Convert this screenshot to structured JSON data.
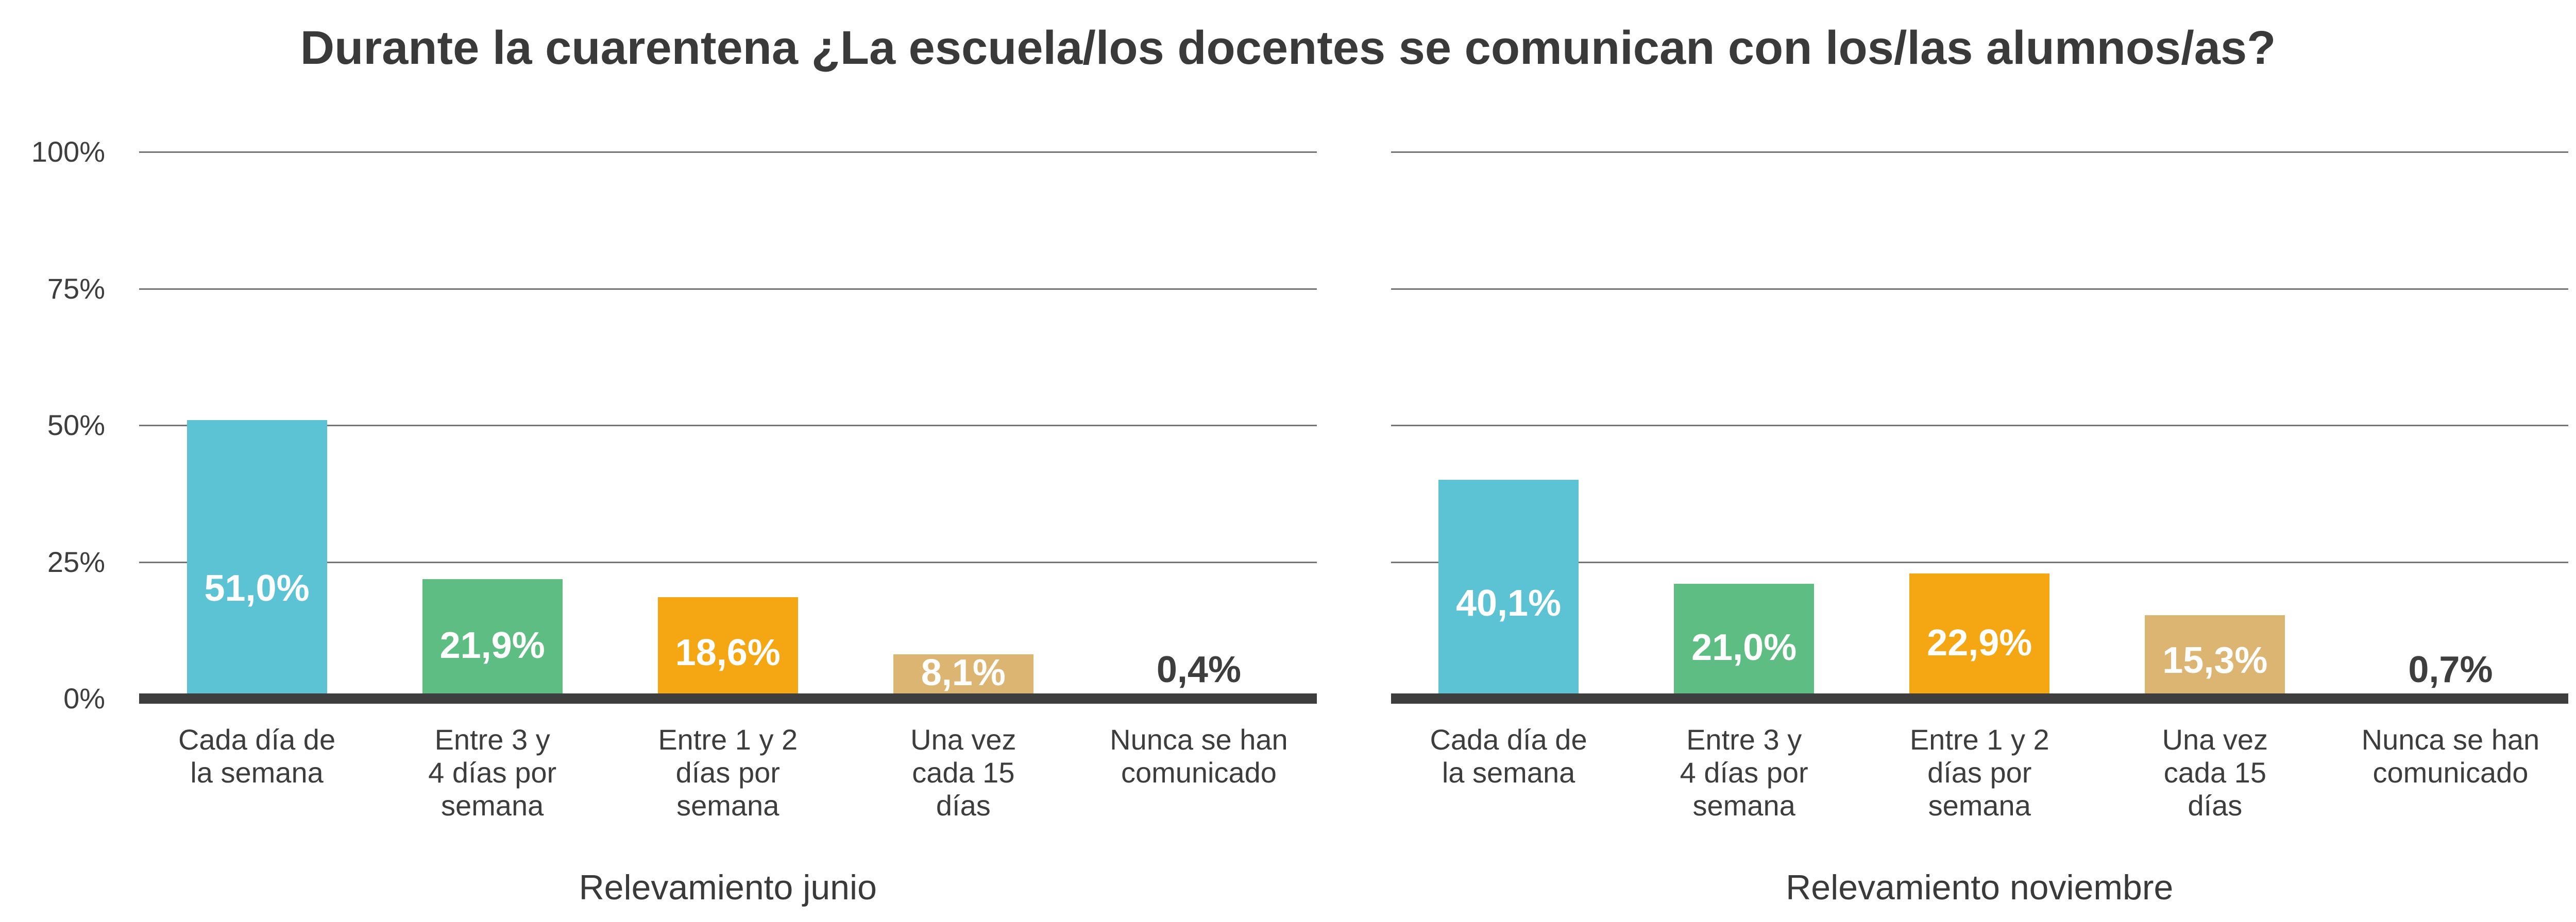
{
  "title": "Durante la cuarentena ¿La escuela/los docentes se comunican con los/las alumnos/as?",
  "y_axis_ticks": [
    "100%",
    "75%",
    "50%",
    "25%",
    "0%"
  ],
  "category_lines": [
    [
      "Cada día de",
      "la semana"
    ],
    [
      "Entre 3 y",
      "4 días por",
      "semana"
    ],
    [
      "Entre 1 y 2",
      "días por",
      "semana"
    ],
    [
      "Una vez",
      "cada 15",
      "días"
    ],
    [
      "Nunca se han",
      "comunicado"
    ]
  ],
  "chart_data": {
    "type": "bar",
    "categories": [
      "Cada día de la semana",
      "Entre 3 y 4 días por semana",
      "Entre 1 y 2 días por semana",
      "Una vez cada 15 días",
      "Nunca se han comunicado"
    ],
    "series": [
      {
        "name": "Relevamiento junio",
        "values": [
          51.0,
          21.9,
          18.6,
          8.1,
          0.4
        ],
        "labels": [
          "51,0%",
          "21,9%",
          "18,6%",
          "8,1%",
          "0,4%"
        ]
      },
      {
        "name": "Relevamiento noviembre",
        "values": [
          40.1,
          21.0,
          22.9,
          15.3,
          0.7
        ],
        "labels": [
          "40,1%",
          "21,0%",
          "22,9%",
          "15,3%",
          "0,7%"
        ]
      }
    ],
    "bar_colors": [
      "#5cc3d4",
      "#5dbd82",
      "#f4a712",
      "#dcb573",
      null
    ],
    "title": "Durante la cuarentena ¿La escuela/los docentes se comunican con los/las alumnos/as?",
    "xlabel": "",
    "ylabel": "",
    "ylim": [
      0,
      100
    ],
    "yticks_pct": [
      0,
      25,
      50,
      75,
      100
    ],
    "grid": true,
    "legend_position": "none"
  },
  "colors": {
    "background": "#ffffff",
    "text": "#3a3a3a",
    "gridline": "#757575",
    "axis": "#3e3e3e",
    "value_label_on_bar": "#ffffff",
    "value_label_no_bar": "#3e3e3e"
  }
}
